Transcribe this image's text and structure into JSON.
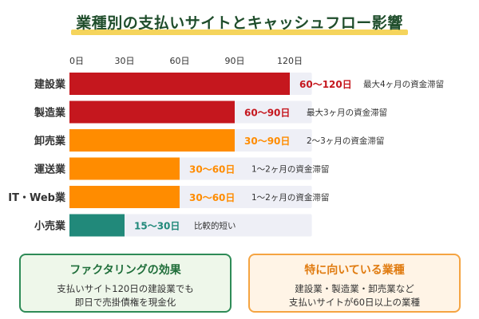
{
  "title": "業種別の支払いサイトとキャッシュフロー影響",
  "colors": {
    "red": "#c5171e",
    "orange": "#ff8c00",
    "green": "#21897a",
    "track": "#eeeff6",
    "title_underline": "#f5d45c"
  },
  "chart_data": {
    "type": "bar",
    "orientation": "horizontal",
    "x_ticks": [
      "0日",
      "30日",
      "60日",
      "90日",
      "120日"
    ],
    "x_tick_values": [
      0,
      30,
      60,
      90,
      120
    ],
    "xlim": [
      0,
      132
    ],
    "grid": false,
    "categories": [
      "建設業",
      "製造業",
      "卸売業",
      "運送業",
      "IT・Web業",
      "小売業"
    ],
    "values": [
      120,
      90,
      90,
      60,
      60,
      30
    ],
    "range_labels": [
      "60〜120日",
      "60〜90日",
      "30〜90日",
      "30〜60日",
      "30〜60日",
      "15〜30日"
    ],
    "notes": [
      "最大4ヶ月の資金滞留",
      "最大3ヶ月の資金滞留",
      "2〜3ヶ月の資金滞留",
      "1〜2ヶ月の資金滞留",
      "1〜2ヶ月の資金滞留",
      "比較的短い"
    ],
    "bar_colors": [
      "red",
      "red",
      "orange",
      "orange",
      "orange",
      "green"
    ]
  },
  "cards": {
    "left": {
      "title": "ファクタリングの効果",
      "line1": "支払いサイト120日の建設業でも",
      "line2": "即日で売掛債権を現金化"
    },
    "right": {
      "title": "特に向いている業種",
      "line1": "建設業・製造業・卸売業など",
      "line2": "支払いサイトが60日以上の業種"
    }
  }
}
